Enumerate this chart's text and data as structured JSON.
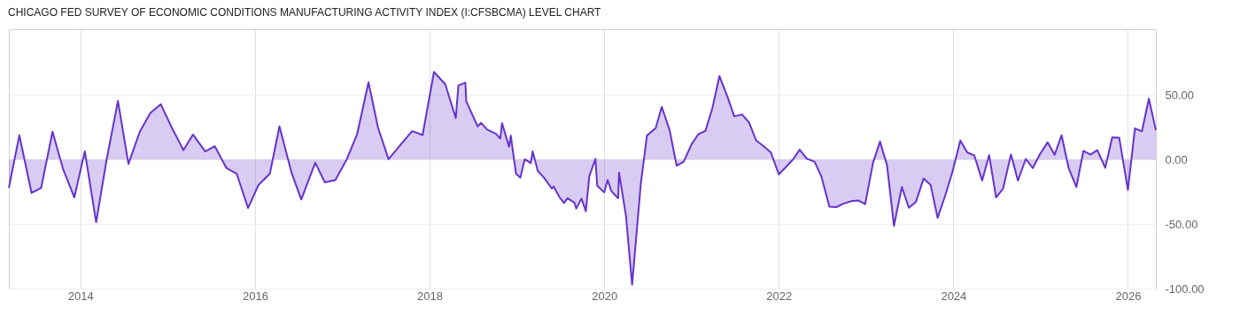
{
  "chart_data": {
    "type": "area",
    "title": "CHICAGO FED SURVEY OF ECONOMIC CONDITIONS MANUFACTURING ACTIVITY INDEX (I:CFSBCMA) LEVEL CHART",
    "x": [
      2013.18,
      2013.3,
      2013.44,
      2013.55,
      2013.68,
      2013.8,
      2013.93,
      2014.05,
      2014.18,
      2014.3,
      2014.43,
      2014.55,
      2014.68,
      2014.8,
      2014.92,
      2015.05,
      2015.18,
      2015.29,
      2015.43,
      2015.54,
      2015.67,
      2015.79,
      2015.92,
      2016.04,
      2016.17,
      2016.28,
      2016.42,
      2016.53,
      2016.69,
      2016.8,
      2016.92,
      2017.05,
      2017.17,
      2017.3,
      2017.41,
      2017.53,
      2017.66,
      2017.8,
      2017.92,
      2018.05,
      2018.18,
      2018.3,
      2018.33,
      2018.41,
      2018.42,
      2018.55,
      2018.59,
      2018.66,
      2018.76,
      2018.81,
      2018.83,
      2018.91,
      2018.93,
      2018.99,
      2019.04,
      2019.09,
      2019.16,
      2019.18,
      2019.24,
      2019.31,
      2019.4,
      2019.42,
      2019.49,
      2019.54,
      2019.58,
      2019.66,
      2019.68,
      2019.74,
      2019.79,
      2019.83,
      2019.9,
      2019.92,
      2020.0,
      2020.04,
      2020.08,
      2020.16,
      2020.17,
      2020.25,
      2020.32,
      2020.42,
      2020.49,
      2020.59,
      2020.66,
      2020.75,
      2020.83,
      2020.91,
      2021.0,
      2021.08,
      2021.16,
      2021.24,
      2021.32,
      2021.41,
      2021.49,
      2021.58,
      2021.66,
      2021.74,
      2021.83,
      2021.91,
      2022.0,
      2022.08,
      2022.16,
      2022.24,
      2022.32,
      2022.41,
      2022.49,
      2022.58,
      2022.66,
      2022.74,
      2022.83,
      2022.91,
      2022.99,
      2023.08,
      2023.16,
      2023.24,
      2023.32,
      2023.41,
      2023.49,
      2023.57,
      2023.66,
      2023.74,
      2023.82,
      2023.91,
      2023.99,
      2024.08,
      2024.16,
      2024.24,
      2024.33,
      2024.41,
      2024.49,
      2024.57,
      2024.66,
      2024.74,
      2024.83,
      2024.91,
      2024.99,
      2025.08,
      2025.16,
      2025.24,
      2025.32,
      2025.41,
      2025.49,
      2025.57,
      2025.65,
      2025.74,
      2025.82,
      2025.9,
      2026.0,
      2026.08,
      2026.16,
      2026.24,
      2026.32
    ],
    "series": [
      {
        "color": "#6633cc",
        "values": [
          -22,
          18.8,
          -25.9,
          -22,
          21.6,
          -7.1,
          -29.4,
          6.4,
          -48.6,
          0,
          45.4,
          -3.4,
          21.6,
          36,
          42.9,
          24.3,
          7.3,
          19.3,
          6.2,
          10.3,
          -6.4,
          -11,
          -37.6,
          -19.7,
          -11,
          25.7,
          -10.6,
          -31,
          -2.5,
          -17.7,
          -16,
          0,
          19.7,
          59.9,
          24.5,
          0.2,
          10.8,
          22,
          19,
          67.9,
          58.3,
          32.1,
          57.3,
          59.6,
          45.2,
          25.7,
          28.4,
          23.2,
          20,
          16.3,
          28.2,
          9.9,
          18.6,
          -11,
          -14,
          0.2,
          -2.8,
          6.4,
          -8.9,
          -14,
          -22.5,
          -20.9,
          -29.4,
          -33.7,
          -30,
          -33.5,
          -38,
          -30.3,
          -40.1,
          -12.8,
          0.5,
          -20.2,
          -25.5,
          -15.8,
          -24.3,
          -30,
          -10.1,
          -43.8,
          -97,
          -18.6,
          18.6,
          24.3,
          40.8,
          22.7,
          -4.8,
          -1.8,
          11.7,
          19.7,
          22.2,
          39.9,
          64.7,
          49.1,
          33.5,
          34.9,
          28.7,
          14.9,
          10.1,
          5.5,
          -11.5,
          -6,
          -0.2,
          7.6,
          0.7,
          -1.6,
          -13.5,
          -36.5,
          -36.9,
          -34.2,
          -32.3,
          -31.7,
          -34.6,
          -2.5,
          14,
          -4.4,
          -51.4,
          -21.3,
          -37.4,
          -33,
          -14.7,
          -19.7,
          -45.2,
          -27.3,
          -9.4,
          14.7,
          5.5,
          3.2,
          -16.3,
          3.4,
          -29.4,
          -22.5,
          3.9,
          -16.3,
          0.5,
          -6.7,
          3.9,
          13.3,
          3.7,
          18.8,
          -6.4,
          -21.3,
          6.7,
          3.9,
          7.3,
          -6.4,
          17.2,
          17,
          -23.6,
          24.1,
          21.8,
          47.2,
          22.7
        ]
      }
    ],
    "xlim": [
      2013.18,
      2026.32
    ],
    "xticks": [
      2014,
      2016,
      2018,
      2020,
      2022,
      2024,
      2026
    ],
    "ylim": [
      -100,
      101
    ],
    "yticks": [
      {
        "value": 50,
        "label": "50.00"
      },
      {
        "value": 0,
        "label": "0.00"
      },
      {
        "value": -50,
        "label": "-50.00"
      },
      {
        "value": -100,
        "label": "-100.00"
      }
    ],
    "grid": true
  }
}
